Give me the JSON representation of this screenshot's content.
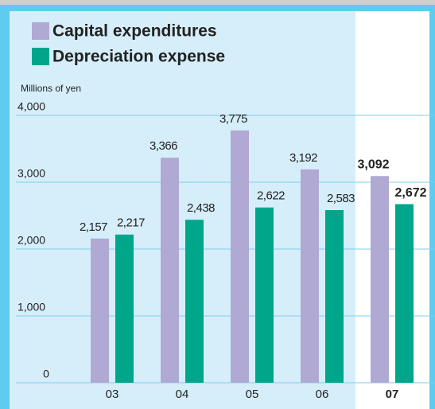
{
  "chart_data": {
    "type": "bar",
    "y_axis_label": "Millions of yen",
    "categories": [
      "03",
      "04",
      "05",
      "06",
      "07"
    ],
    "series": [
      {
        "name": "Capital expenditures",
        "color": "#b0a9d3",
        "values": [
          2157,
          3366,
          3775,
          3192,
          3092
        ],
        "value_labels": [
          "2,157",
          "3,366",
          "3,775",
          "3,192",
          "3,092"
        ]
      },
      {
        "name": "Depreciation expense",
        "color": "#00a68a",
        "values": [
          2217,
          2438,
          2622,
          2583,
          2672
        ],
        "value_labels": [
          "2,217",
          "2,438",
          "2,622",
          "2,583",
          "2,672"
        ]
      }
    ],
    "ylim": [
      0,
      4000
    ],
    "yticks": [
      0,
      {
        "value": 1000,
        "label": "1,000"
      },
      {
        "value": 2000,
        "label": "2,000"
      },
      {
        "value": 3000,
        "label": "3,000"
      },
      {
        "value": 4000,
        "label": "4,000"
      }
    ],
    "grid": true,
    "highlight_index": 4,
    "legend": "top-left"
  }
}
